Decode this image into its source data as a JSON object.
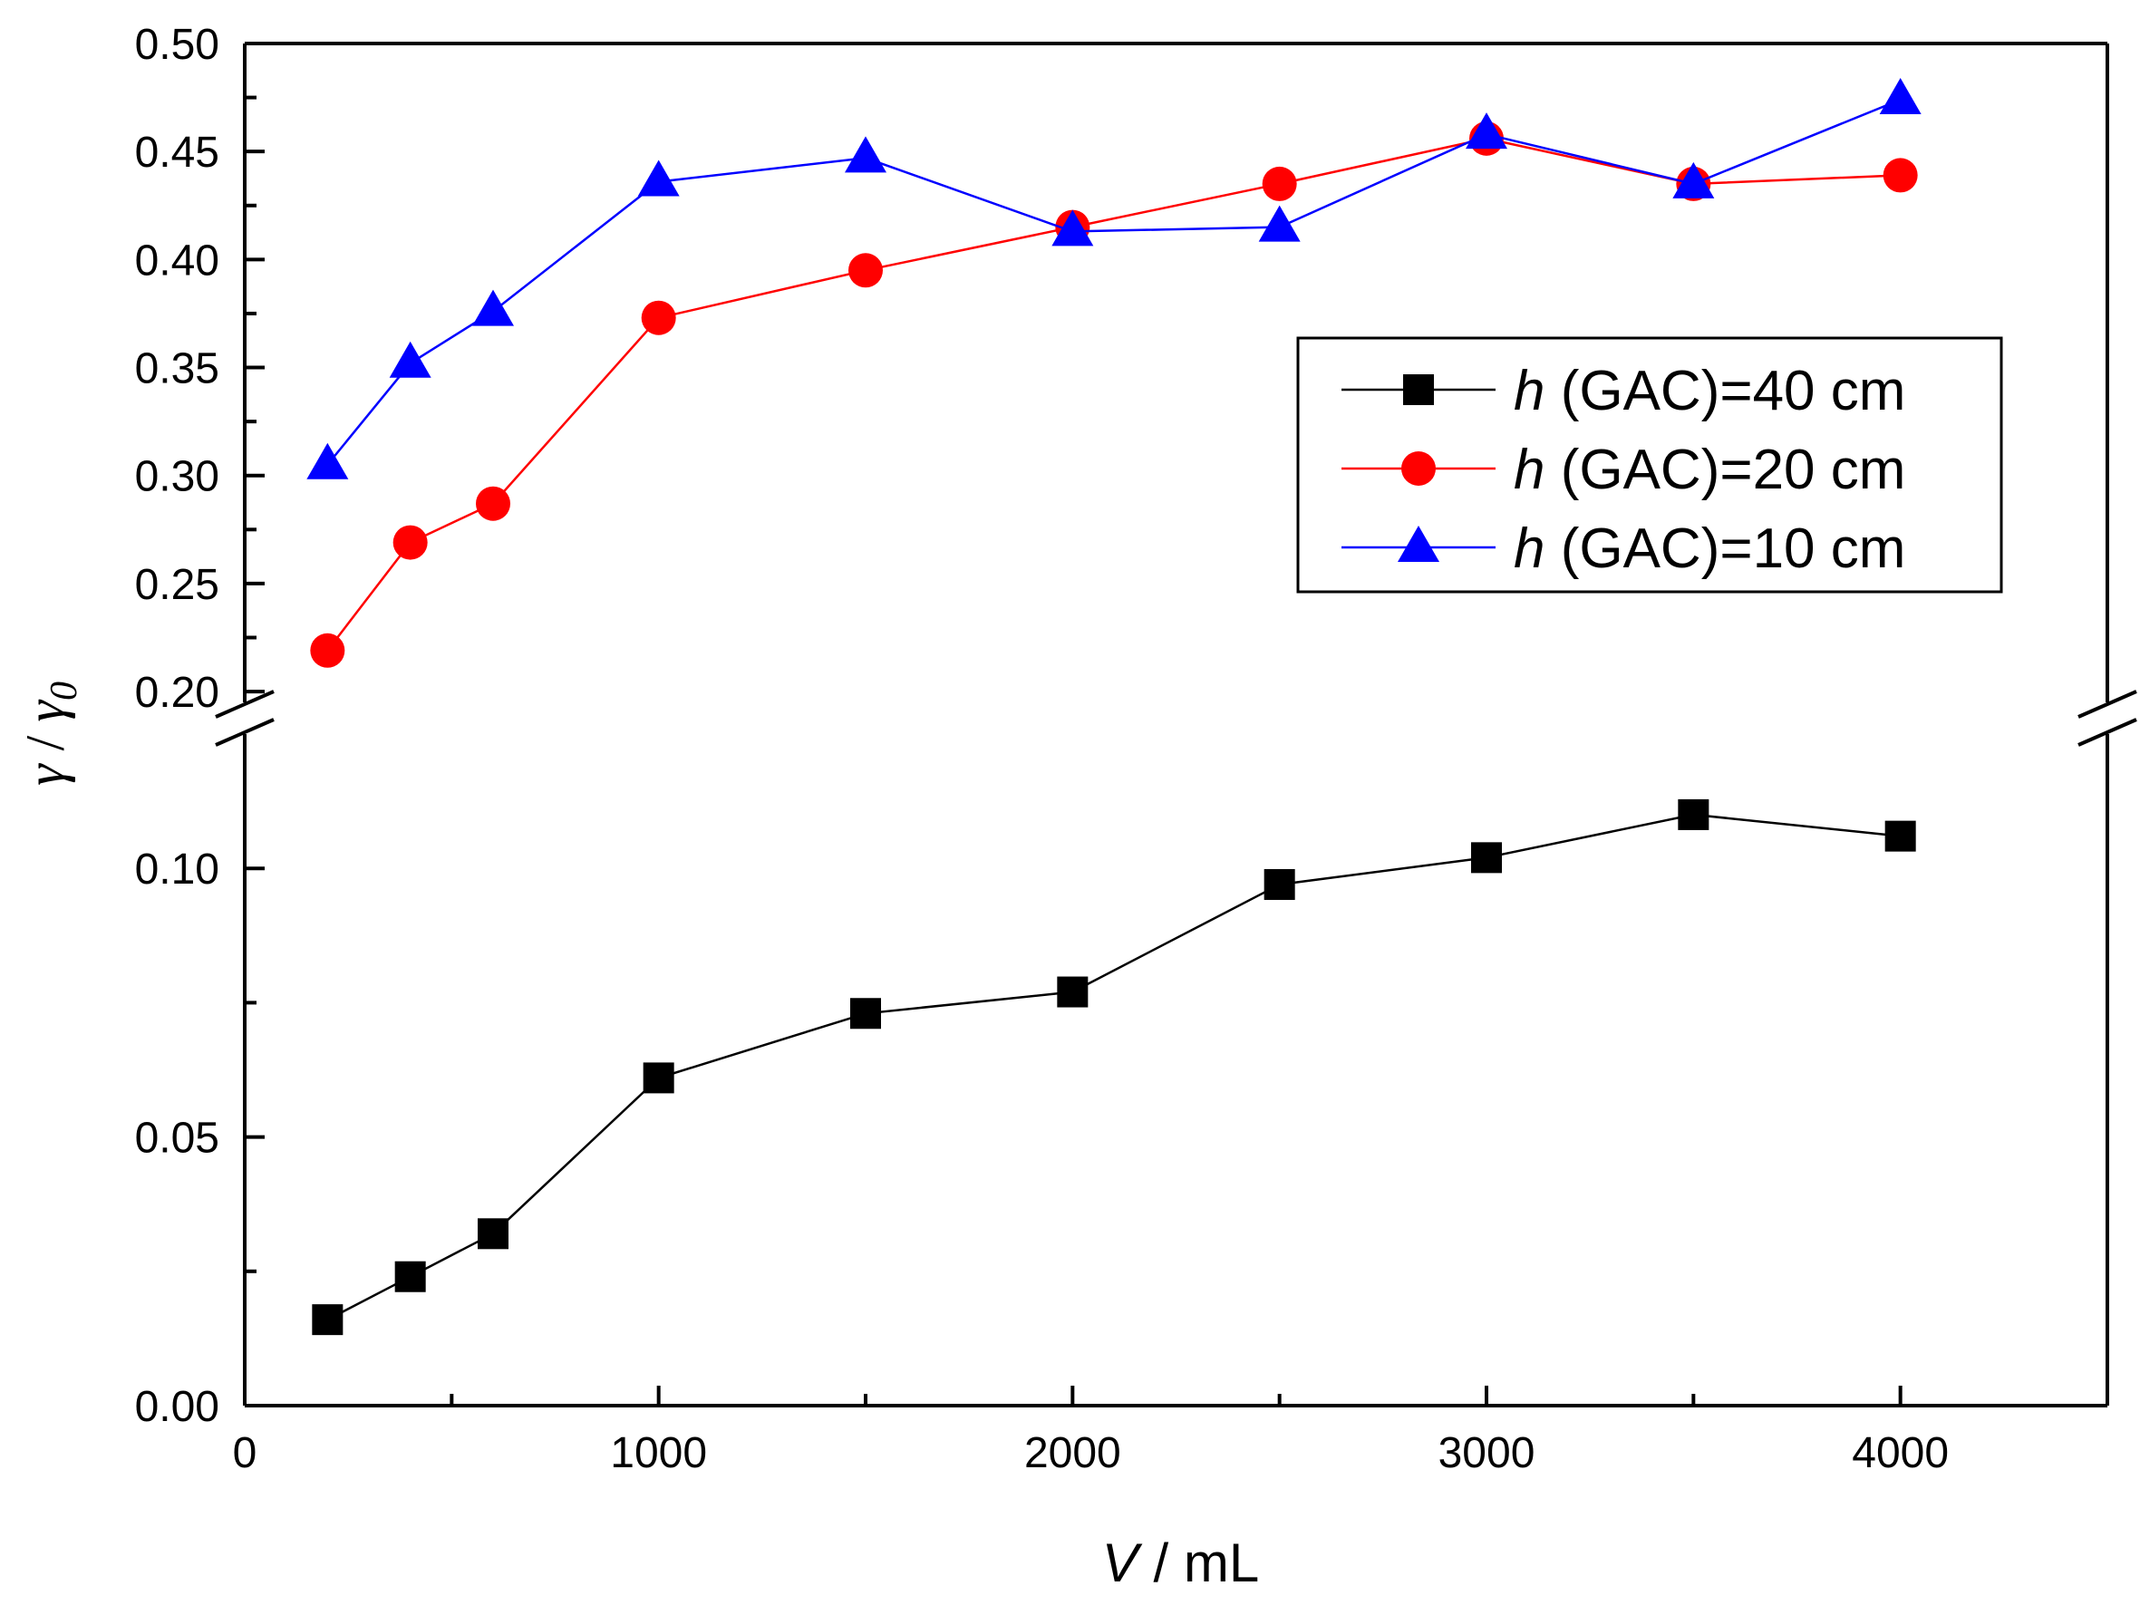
{
  "chart_data": {
    "type": "line",
    "xlabel": {
      "var": "V",
      "unit": " / mL"
    },
    "ylabel": {
      "num": "γ",
      "sep": " / ",
      "den": "γ",
      "sub": "0"
    },
    "xlim": [
      0,
      4500
    ],
    "x_ticks": [
      "0",
      "1000",
      "2000",
      "3000",
      "4000"
    ],
    "y_break": {
      "lower_range": [
        0.0,
        0.125
      ],
      "upper_range": [
        0.195,
        0.5
      ]
    },
    "y_ticks_lower": [
      "0.00",
      "0.05",
      "0.10"
    ],
    "y_ticks_upper": [
      "0.20",
      "0.25",
      "0.30",
      "0.35",
      "0.40",
      "0.45",
      "0.50"
    ],
    "x": [
      200,
      400,
      600,
      1000,
      1500,
      2000,
      2500,
      3000,
      3500,
      4000
    ],
    "series": [
      {
        "name": "h (GAC)=40 cm",
        "label_var": "h",
        "label_rest": " (GAC)=40 cm",
        "color": "#000000",
        "marker": "square",
        "values": [
          0.016,
          0.024,
          0.032,
          0.061,
          0.073,
          0.077,
          0.097,
          0.102,
          0.11,
          0.106
        ]
      },
      {
        "name": "h (GAC)=20 cm",
        "label_var": "h",
        "label_rest": " (GAC)=20 cm",
        "color": "#ff0000",
        "marker": "circle",
        "values": [
          0.219,
          0.269,
          0.287,
          0.373,
          0.395,
          0.415,
          0.435,
          0.456,
          0.435,
          0.439
        ]
      },
      {
        "name": "h (GAC)=10 cm",
        "label_var": "h",
        "label_rest": " (GAC)=10 cm",
        "color": "#0000ff",
        "marker": "triangle",
        "values": [
          0.305,
          0.352,
          0.376,
          0.436,
          0.447,
          0.413,
          0.415,
          0.458,
          0.435,
          0.474
        ]
      }
    ],
    "legend_position": "upper-right"
  }
}
